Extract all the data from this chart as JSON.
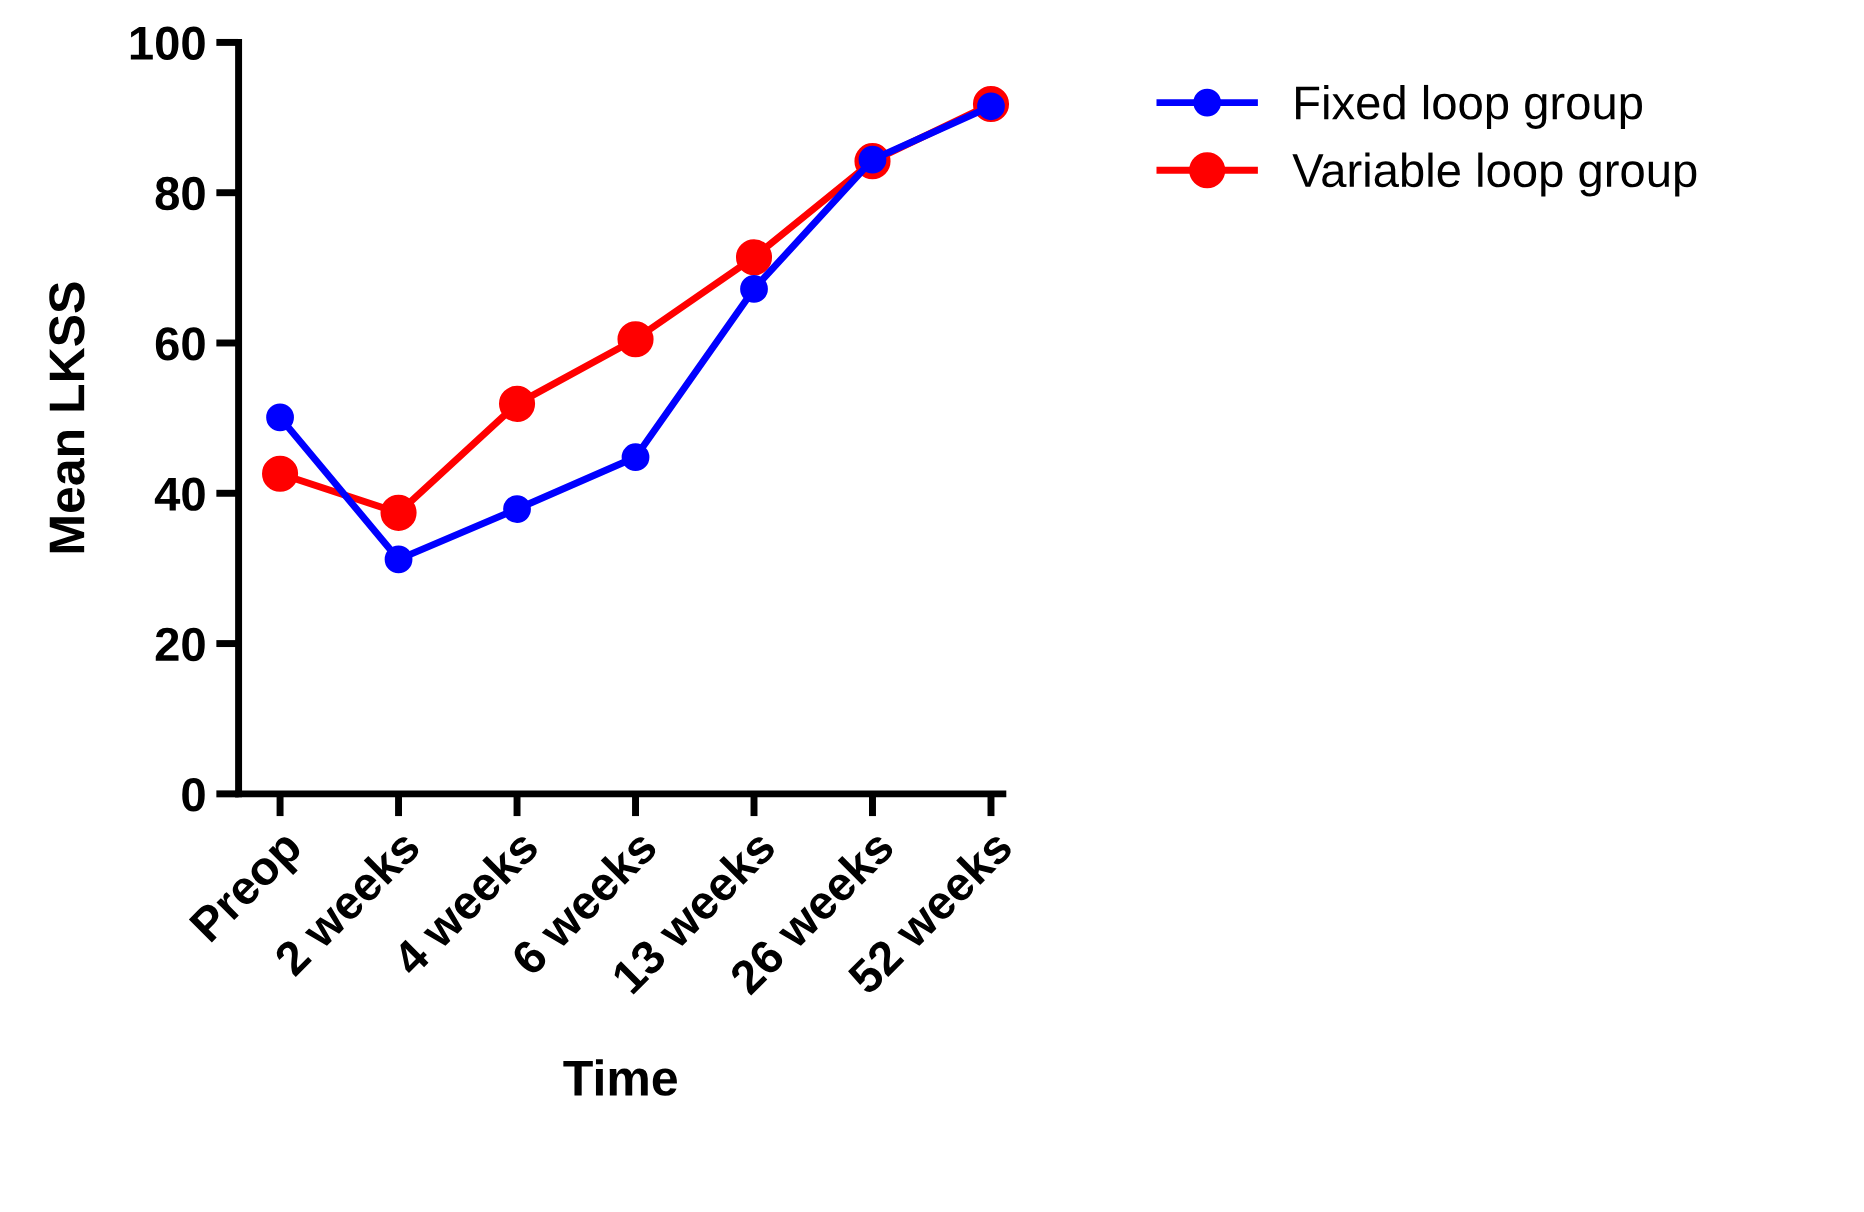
{
  "chart_data": {
    "type": "line",
    "xlabel": "Time",
    "ylabel": "Mean LKSS",
    "categories": [
      "Preop",
      "2 weeks",
      "4 weeks",
      "6 weeks",
      "13 weeks",
      "26 weeks",
      "52 weeks"
    ],
    "series": [
      {
        "name": "Fixed loop group",
        "color": "#0000ff",
        "values": [
          50.1,
          31.2,
          37.9,
          44.8,
          67.2,
          84.4,
          91.5
        ]
      },
      {
        "name": "Variable loop group",
        "color": "#ff0000",
        "values": [
          42.6,
          37.4,
          51.9,
          60.5,
          71.4,
          84.2,
          91.8
        ]
      }
    ],
    "ylim": [
      0,
      100
    ],
    "yticks": [
      0,
      20,
      40,
      60,
      80,
      100
    ],
    "grid": false,
    "legend": "top right",
    "marker": "circle",
    "line_style": "solid"
  }
}
